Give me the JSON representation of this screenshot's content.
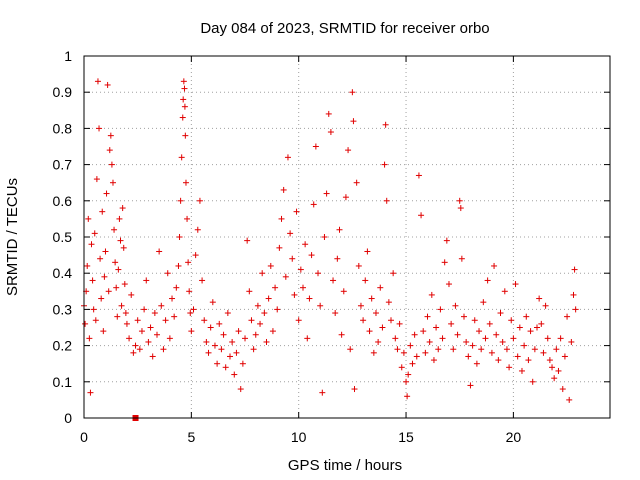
{
  "chart_data": {
    "type": "scatter",
    "title": "Day 084 of 2023, SRMTID for receiver orbo",
    "xlabel": "GPS time / hours",
    "ylabel": "SRMTID / TECUs",
    "xlim": [
      0,
      24.5
    ],
    "ylim": [
      0,
      1
    ],
    "grid": true,
    "marker": "plus",
    "color": "#e00000",
    "x_ticks": [
      0,
      5,
      10,
      15,
      20
    ],
    "x_tick_labels": [
      "0",
      "5",
      "10",
      "15",
      "20"
    ],
    "y_ticks": [
      0,
      0.1,
      0.2,
      0.3,
      0.4,
      0.5,
      0.6,
      0.7,
      0.8,
      0.9,
      1
    ],
    "y_tick_labels": [
      "0",
      "0.1",
      "0.2",
      "0.3",
      "0.4",
      "0.5",
      "0.6",
      "0.7",
      "0.8",
      "0.9",
      "1"
    ],
    "series": [
      {
        "name": "SRMTID",
        "points": [
          [
            0.0,
            0.31
          ],
          [
            0.05,
            0.26
          ],
          [
            0.1,
            0.35
          ],
          [
            0.15,
            0.42
          ],
          [
            0.2,
            0.55
          ],
          [
            0.25,
            0.22
          ],
          [
            0.3,
            0.07
          ],
          [
            0.35,
            0.48
          ],
          [
            0.4,
            0.38
          ],
          [
            0.45,
            0.3
          ],
          [
            0.5,
            0.51
          ],
          [
            0.55,
            0.27
          ],
          [
            0.6,
            0.66
          ],
          [
            0.65,
            0.93
          ],
          [
            0.7,
            0.8
          ],
          [
            0.75,
            0.44
          ],
          [
            0.8,
            0.33
          ],
          [
            0.85,
            0.57
          ],
          [
            0.9,
            0.24
          ],
          [
            0.95,
            0.39
          ],
          [
            1.0,
            0.46
          ],
          [
            1.05,
            0.62
          ],
          [
            1.1,
            0.92
          ],
          [
            1.15,
            0.35
          ],
          [
            1.2,
            0.74
          ],
          [
            1.25,
            0.78
          ],
          [
            1.3,
            0.7
          ],
          [
            1.35,
            0.65
          ],
          [
            1.4,
            0.52
          ],
          [
            1.45,
            0.43
          ],
          [
            1.5,
            0.36
          ],
          [
            1.55,
            0.28
          ],
          [
            1.6,
            0.41
          ],
          [
            1.65,
            0.55
          ],
          [
            1.7,
            0.49
          ],
          [
            1.75,
            0.31
          ],
          [
            1.8,
            0.58
          ],
          [
            1.85,
            0.47
          ],
          [
            1.9,
            0.37
          ],
          [
            1.95,
            0.29
          ],
          [
            2.0,
            0.26
          ],
          [
            2.1,
            0.22
          ],
          [
            2.2,
            0.34
          ],
          [
            2.3,
            0.18
          ],
          [
            2.4,
            0.2
          ],
          [
            2.5,
            0.27
          ],
          [
            2.6,
            0.19
          ],
          [
            2.7,
            0.24
          ],
          [
            2.8,
            0.3
          ],
          [
            2.9,
            0.38
          ],
          [
            3.0,
            0.21
          ],
          [
            3.1,
            0.25
          ],
          [
            3.2,
            0.17
          ],
          [
            3.3,
            0.29
          ],
          [
            3.4,
            0.23
          ],
          [
            3.5,
            0.46
          ],
          [
            3.6,
            0.31
          ],
          [
            3.7,
            0.19
          ],
          [
            3.8,
            0.27
          ],
          [
            3.9,
            0.4
          ],
          [
            4.0,
            0.22
          ],
          [
            4.1,
            0.33
          ],
          [
            4.2,
            0.28
          ],
          [
            4.3,
            0.36
          ],
          [
            4.4,
            0.42
          ],
          [
            4.45,
            0.5
          ],
          [
            4.5,
            0.6
          ],
          [
            4.55,
            0.72
          ],
          [
            4.6,
            0.83
          ],
          [
            4.62,
            0.88
          ],
          [
            4.65,
            0.93
          ],
          [
            4.68,
            0.91
          ],
          [
            4.7,
            0.86
          ],
          [
            4.72,
            0.78
          ],
          [
            4.75,
            0.65
          ],
          [
            4.8,
            0.55
          ],
          [
            4.85,
            0.43
          ],
          [
            4.9,
            0.35
          ],
          [
            4.95,
            0.29
          ],
          [
            5.0,
            0.24
          ],
          [
            5.1,
            0.3
          ],
          [
            5.2,
            0.45
          ],
          [
            5.3,
            0.52
          ],
          [
            5.4,
            0.6
          ],
          [
            5.5,
            0.38
          ],
          [
            5.6,
            0.27
          ],
          [
            5.7,
            0.21
          ],
          [
            5.8,
            0.18
          ],
          [
            5.9,
            0.25
          ],
          [
            6.0,
            0.32
          ],
          [
            6.1,
            0.2
          ],
          [
            6.2,
            0.15
          ],
          [
            6.3,
            0.26
          ],
          [
            6.4,
            0.19
          ],
          [
            6.5,
            0.23
          ],
          [
            6.6,
            0.14
          ],
          [
            6.7,
            0.29
          ],
          [
            6.8,
            0.17
          ],
          [
            6.9,
            0.21
          ],
          [
            7.0,
            0.12
          ],
          [
            7.1,
            0.18
          ],
          [
            7.2,
            0.24
          ],
          [
            7.3,
            0.08
          ],
          [
            7.4,
            0.15
          ],
          [
            7.5,
            0.22
          ],
          [
            7.6,
            0.49
          ],
          [
            7.7,
            0.35
          ],
          [
            7.8,
            0.27
          ],
          [
            7.9,
            0.19
          ],
          [
            8.0,
            0.23
          ],
          [
            8.1,
            0.31
          ],
          [
            8.2,
            0.26
          ],
          [
            8.3,
            0.4
          ],
          [
            8.4,
            0.29
          ],
          [
            8.5,
            0.21
          ],
          [
            8.6,
            0.33
          ],
          [
            8.7,
            0.42
          ],
          [
            8.8,
            0.24
          ],
          [
            8.9,
            0.36
          ],
          [
            9.0,
            0.3
          ],
          [
            9.1,
            0.47
          ],
          [
            9.2,
            0.55
          ],
          [
            9.3,
            0.63
          ],
          [
            9.4,
            0.39
          ],
          [
            9.5,
            0.72
          ],
          [
            9.6,
            0.51
          ],
          [
            9.7,
            0.44
          ],
          [
            9.8,
            0.34
          ],
          [
            9.9,
            0.57
          ],
          [
            10.0,
            0.27
          ],
          [
            10.1,
            0.41
          ],
          [
            10.2,
            0.36
          ],
          [
            10.3,
            0.48
          ],
          [
            10.4,
            0.22
          ],
          [
            10.5,
            0.33
          ],
          [
            10.6,
            0.45
          ],
          [
            10.7,
            0.59
          ],
          [
            10.8,
            0.75
          ],
          [
            10.9,
            0.4
          ],
          [
            11.0,
            0.31
          ],
          [
            11.1,
            0.07
          ],
          [
            11.2,
            0.5
          ],
          [
            11.3,
            0.62
          ],
          [
            11.4,
            0.84
          ],
          [
            11.5,
            0.79
          ],
          [
            11.6,
            0.38
          ],
          [
            11.7,
            0.29
          ],
          [
            11.8,
            0.44
          ],
          [
            11.9,
            0.52
          ],
          [
            12.0,
            0.23
          ],
          [
            12.1,
            0.35
          ],
          [
            12.2,
            0.61
          ],
          [
            12.3,
            0.74
          ],
          [
            12.4,
            0.19
          ],
          [
            12.5,
            0.9
          ],
          [
            12.55,
            0.82
          ],
          [
            12.6,
            0.08
          ],
          [
            12.7,
            0.65
          ],
          [
            12.8,
            0.42
          ],
          [
            12.9,
            0.31
          ],
          [
            13.0,
            0.27
          ],
          [
            13.1,
            0.38
          ],
          [
            13.2,
            0.46
          ],
          [
            13.3,
            0.24
          ],
          [
            13.4,
            0.33
          ],
          [
            13.5,
            0.18
          ],
          [
            13.6,
            0.29
          ],
          [
            13.7,
            0.21
          ],
          [
            13.8,
            0.36
          ],
          [
            13.9,
            0.25
          ],
          [
            14.0,
            0.7
          ],
          [
            14.05,
            0.81
          ],
          [
            14.1,
            0.6
          ],
          [
            14.2,
            0.32
          ],
          [
            14.3,
            0.27
          ],
          [
            14.4,
            0.4
          ],
          [
            14.5,
            0.22
          ],
          [
            14.6,
            0.19
          ],
          [
            14.7,
            0.26
          ],
          [
            14.8,
            0.14
          ],
          [
            14.9,
            0.18
          ],
          [
            15.0,
            0.1
          ],
          [
            15.05,
            0.06
          ],
          [
            15.1,
            0.12
          ],
          [
            15.2,
            0.2
          ],
          [
            15.3,
            0.15
          ],
          [
            15.4,
            0.23
          ],
          [
            15.5,
            0.17
          ],
          [
            15.6,
            0.67
          ],
          [
            15.7,
            0.56
          ],
          [
            15.8,
            0.24
          ],
          [
            15.9,
            0.18
          ],
          [
            16.0,
            0.28
          ],
          [
            16.1,
            0.21
          ],
          [
            16.2,
            0.34
          ],
          [
            16.3,
            0.16
          ],
          [
            16.4,
            0.25
          ],
          [
            16.5,
            0.19
          ],
          [
            16.6,
            0.3
          ],
          [
            16.7,
            0.22
          ],
          [
            16.8,
            0.43
          ],
          [
            16.9,
            0.49
          ],
          [
            17.0,
            0.37
          ],
          [
            17.1,
            0.26
          ],
          [
            17.2,
            0.19
          ],
          [
            17.3,
            0.31
          ],
          [
            17.4,
            0.23
          ],
          [
            17.5,
            0.6
          ],
          [
            17.55,
            0.58
          ],
          [
            17.6,
            0.44
          ],
          [
            17.7,
            0.28
          ],
          [
            17.8,
            0.21
          ],
          [
            17.9,
            0.17
          ],
          [
            18.0,
            0.09
          ],
          [
            18.1,
            0.2
          ],
          [
            18.2,
            0.27
          ],
          [
            18.3,
            0.15
          ],
          [
            18.4,
            0.24
          ],
          [
            18.5,
            0.19
          ],
          [
            18.6,
            0.32
          ],
          [
            18.7,
            0.22
          ],
          [
            18.8,
            0.38
          ],
          [
            18.9,
            0.26
          ],
          [
            19.0,
            0.18
          ],
          [
            19.1,
            0.42
          ],
          [
            19.2,
            0.23
          ],
          [
            19.3,
            0.16
          ],
          [
            19.4,
            0.29
          ],
          [
            19.5,
            0.21
          ],
          [
            19.6,
            0.35
          ],
          [
            19.7,
            0.19
          ],
          [
            19.8,
            0.14
          ],
          [
            19.9,
            0.27
          ],
          [
            20.0,
            0.22
          ],
          [
            20.1,
            0.37
          ],
          [
            20.2,
            0.17
          ],
          [
            20.3,
            0.25
          ],
          [
            20.4,
            0.13
          ],
          [
            20.5,
            0.2
          ],
          [
            20.6,
            0.28
          ],
          [
            20.7,
            0.16
          ],
          [
            20.8,
            0.24
          ],
          [
            20.9,
            0.1
          ],
          [
            21.0,
            0.19
          ],
          [
            21.1,
            0.25
          ],
          [
            21.2,
            0.33
          ],
          [
            21.3,
            0.26
          ],
          [
            21.4,
            0.18
          ],
          [
            21.5,
            0.31
          ],
          [
            21.6,
            0.22
          ],
          [
            21.7,
            0.16
          ],
          [
            21.8,
            0.14
          ],
          [
            21.9,
            0.11
          ],
          [
            22.0,
            0.19
          ],
          [
            22.1,
            0.13
          ],
          [
            22.2,
            0.22
          ],
          [
            22.3,
            0.08
          ],
          [
            22.4,
            0.17
          ],
          [
            22.5,
            0.28
          ],
          [
            22.6,
            0.05
          ],
          [
            22.7,
            0.21
          ],
          [
            22.8,
            0.34
          ],
          [
            22.85,
            0.41
          ],
          [
            22.9,
            0.3
          ]
        ]
      }
    ],
    "extra_marker": {
      "x": 2.4,
      "y": 0.0,
      "shape": "square"
    }
  }
}
